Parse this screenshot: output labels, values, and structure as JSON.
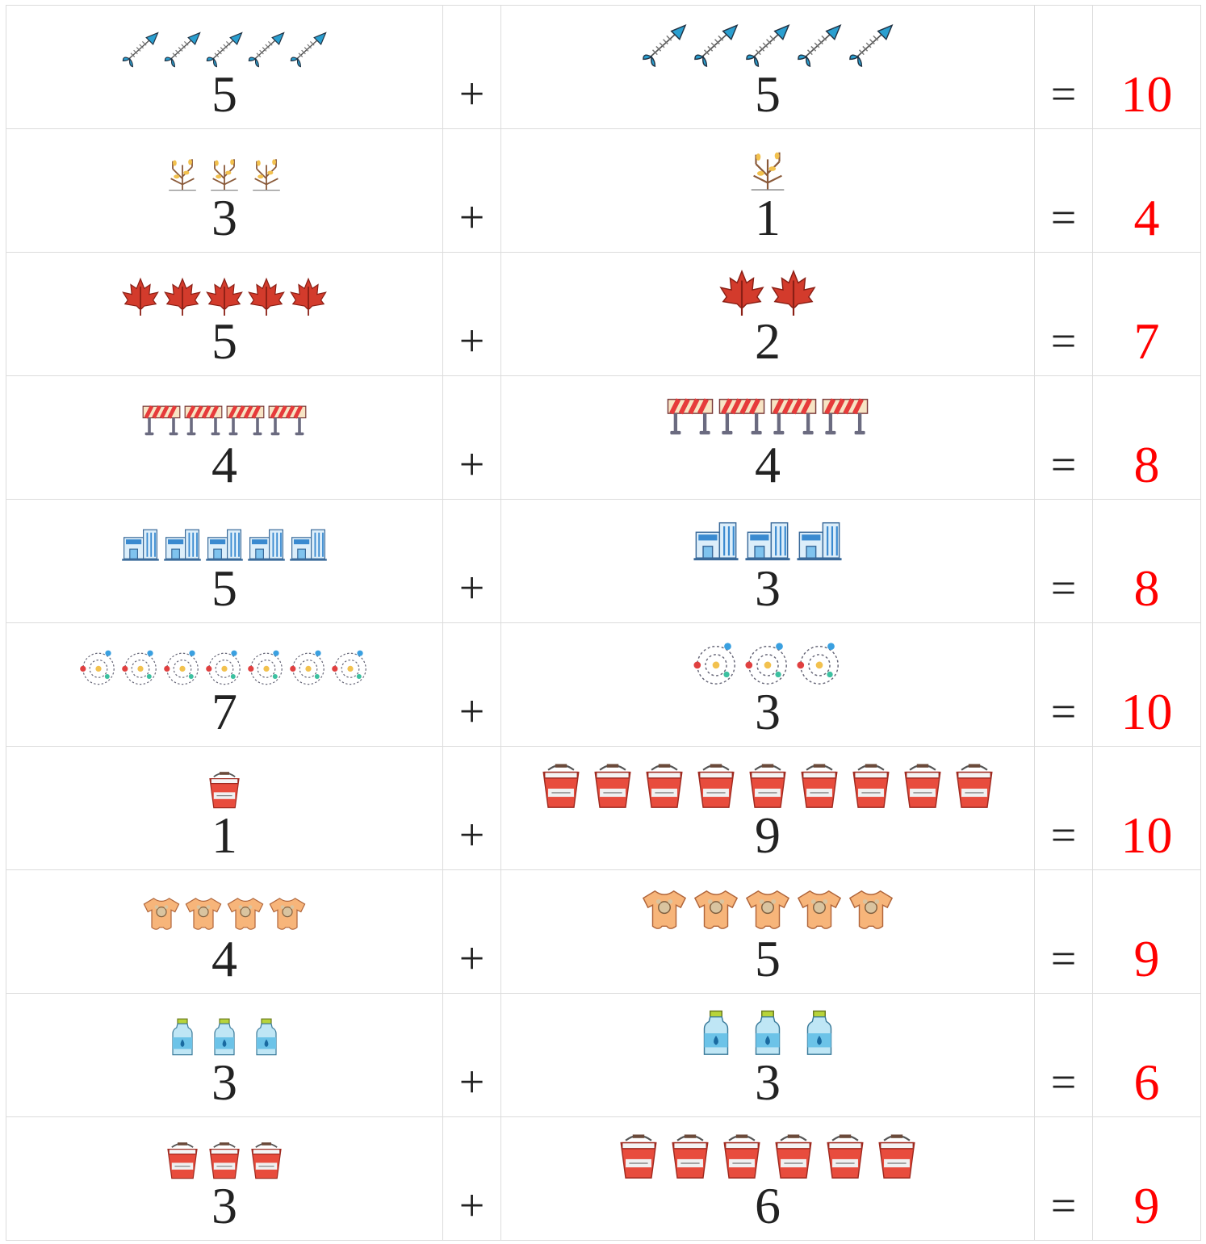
{
  "table": {
    "rows": [
      [
        5,
        "+",
        5,
        "=",
        10
      ],
      [
        3,
        "+",
        1,
        "=",
        4
      ],
      [
        5,
        "+",
        2,
        "=",
        7
      ],
      [
        4,
        "+",
        4,
        "=",
        8
      ],
      [
        5,
        "+",
        3,
        "=",
        8
      ],
      [
        7,
        "+",
        3,
        "=",
        10
      ],
      [
        1,
        "+",
        9,
        "=",
        10
      ],
      [
        4,
        "+",
        5,
        "=",
        9
      ],
      [
        3,
        "+",
        3,
        "=",
        6
      ],
      [
        3,
        "+",
        6,
        "=",
        9
      ]
    ]
  }
}
